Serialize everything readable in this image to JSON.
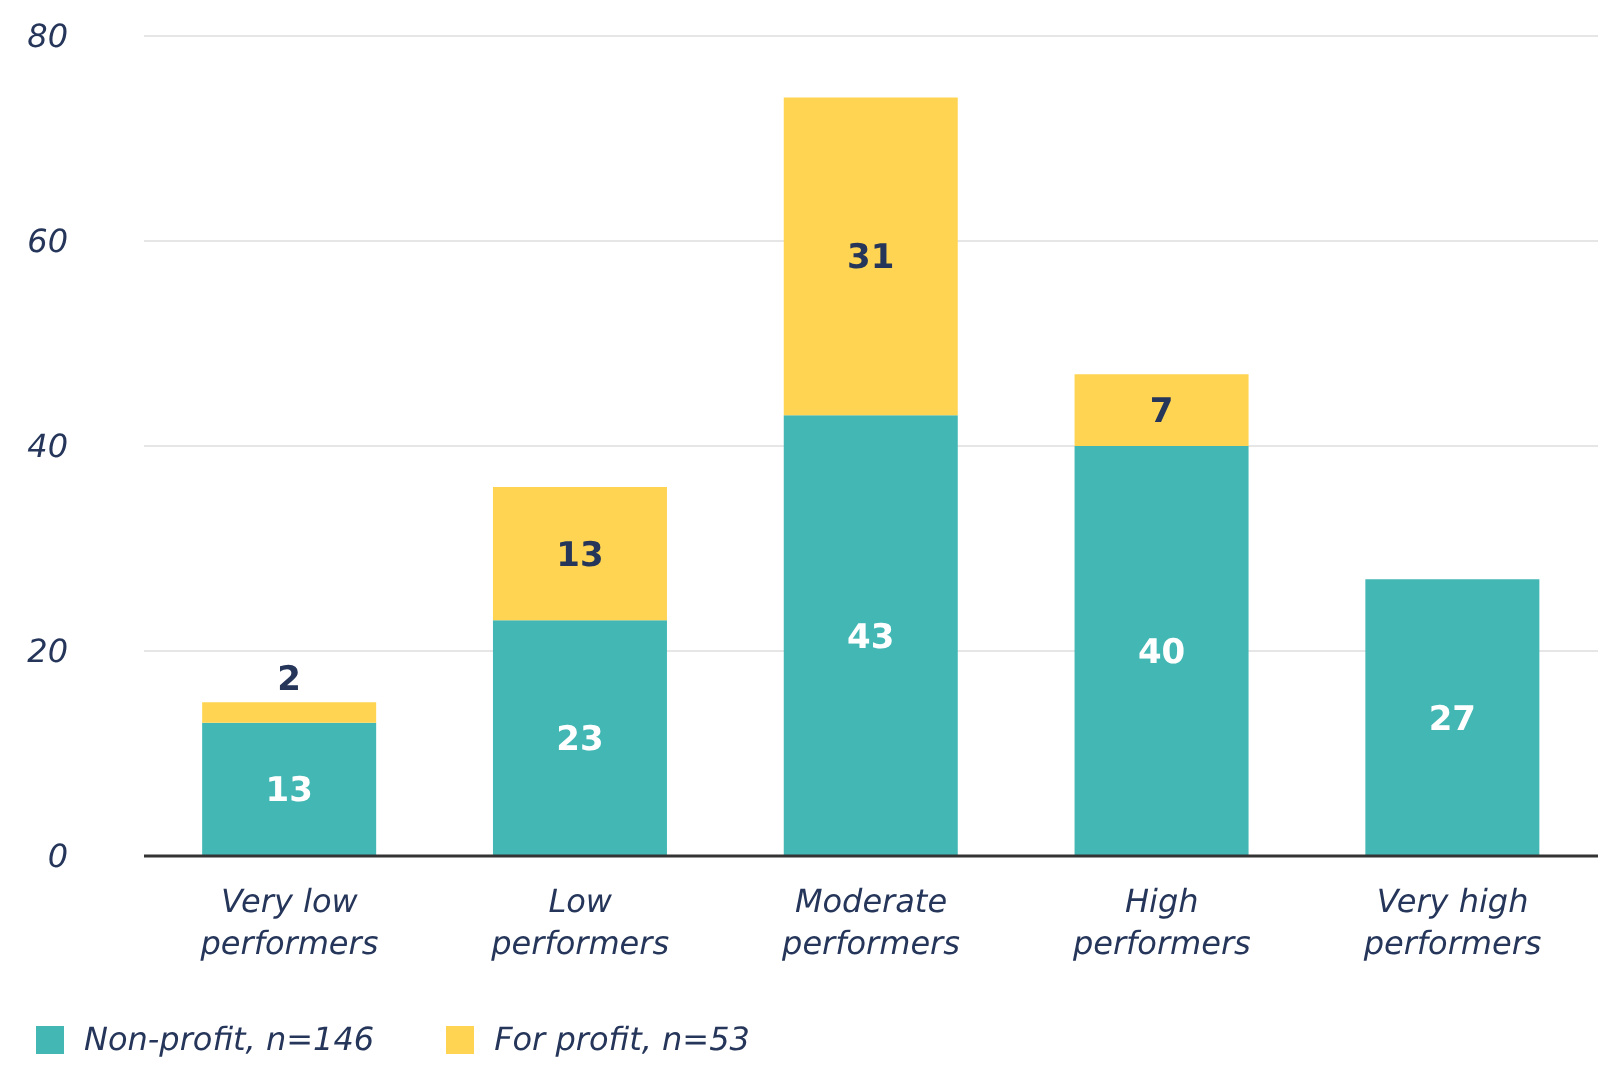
{
  "chart_data": {
    "type": "bar",
    "stacked": true,
    "categories": [
      "Very low performers",
      "Low performers",
      "Moderate performers",
      "High performers",
      "Very high performers"
    ],
    "series": [
      {
        "name": "Non-profit, n=146",
        "color": "#43b7b4",
        "values": [
          13,
          23,
          43,
          40,
          27
        ]
      },
      {
        "name": "For profit, n=53",
        "color": "#ffd452",
        "values": [
          2,
          13,
          31,
          7,
          null
        ]
      }
    ],
    "ylim": [
      0,
      80
    ],
    "yticks": [
      0,
      20,
      40,
      60,
      80
    ],
    "grid": "y",
    "legend": "bottom left",
    "data_labels": true
  }
}
